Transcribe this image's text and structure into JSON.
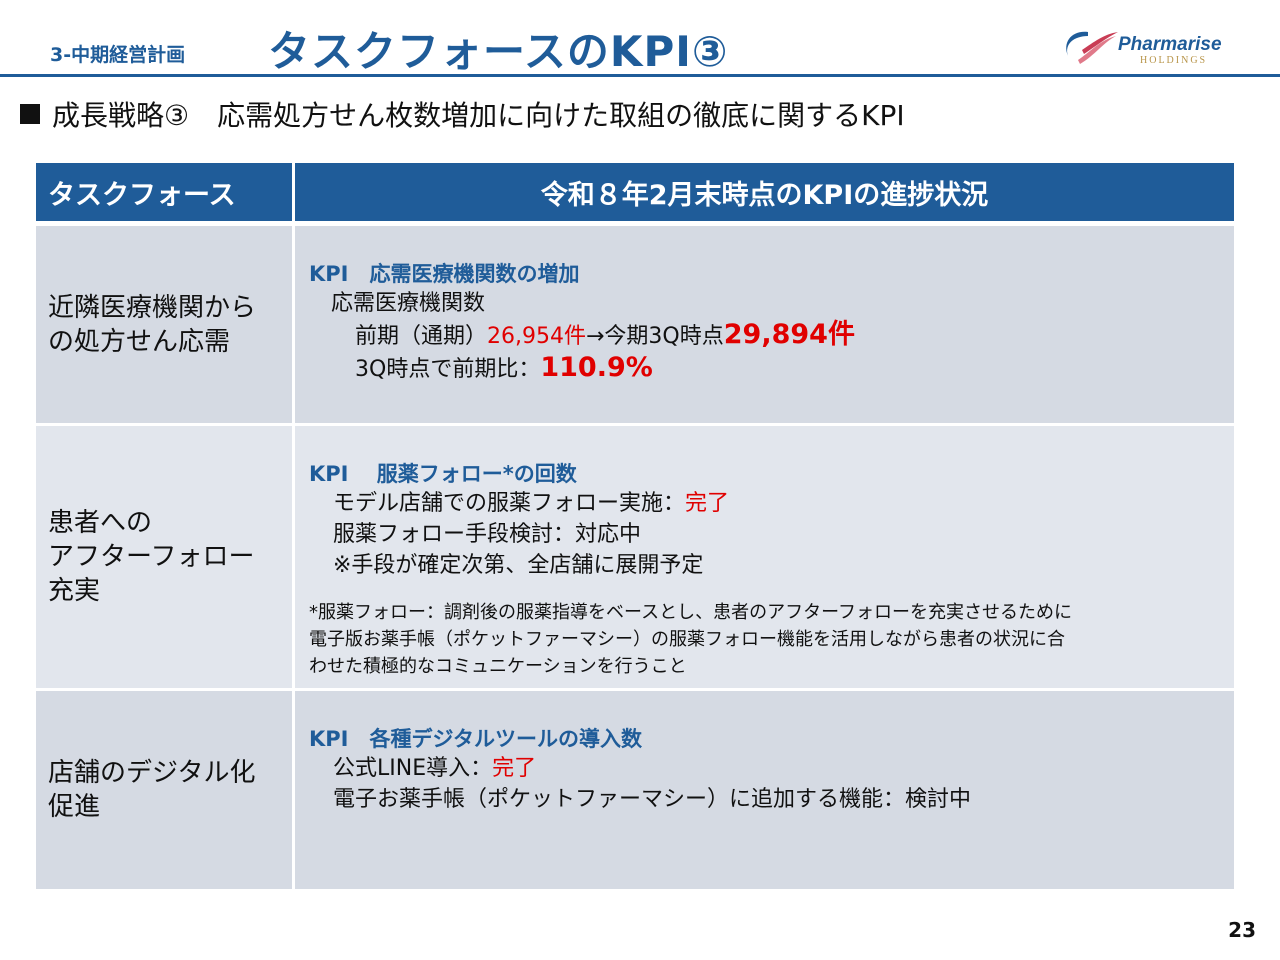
{
  "header": {
    "section": "3-中期経営計画",
    "title": "タスクフォースのKPI③",
    "logo_name": "Pharmarise",
    "logo_sub": "HOLDINGS"
  },
  "subtitle": "成長戦略③　応需処方せん枚数増加に向けた取組の徹底に関するKPI",
  "table": {
    "headers": [
      "タスクフォース",
      "令和８年2月末時点のKPIの進捗状況"
    ],
    "rows": [
      {
        "task": [
          "近隣医療機関から",
          "の処方せん応需"
        ],
        "kpi": "KPI　応需医療機関数の増加",
        "lines": [
          [
            "応需医療機関数"
          ],
          [
            "前期（通期）",
            "26,954件",
            "→今期3Q時点",
            "29,894件"
          ],
          [
            "3Q時点で前期比：",
            "110.9%"
          ]
        ]
      },
      {
        "task": [
          "患者への",
          "アフターフォロー",
          "充実"
        ],
        "kpi": "KPI　 服薬フォロー*の回数",
        "lines": [
          [
            "モデル店舗での服薬フォロー実施：",
            "完了"
          ],
          [
            "服薬フォロー手段検討：対応中"
          ],
          [
            "※手段が確定次第、全店舗に展開予定"
          ]
        ],
        "note": [
          "*服薬フォロー：調剤後の服薬指導をベースとし、患者のアフターフォローを充実させるために",
          "電子版お薬手帳（ポケットファーマシー）の服薬フォロー機能を活用しながら患者の状況に合",
          "わせた積極的なコミュニケーションを行うこと"
        ]
      },
      {
        "task": [
          "店舗のデジタル化",
          "促進"
        ],
        "kpi": "KPI　各種デジタルツールの導入数",
        "lines": [
          [
            "公式LINE導入：",
            "完了"
          ],
          [
            "電子お薬手帳（ポケットファーマシー）に追加する機能：検討中"
          ]
        ]
      }
    ]
  },
  "page_number": "23"
}
